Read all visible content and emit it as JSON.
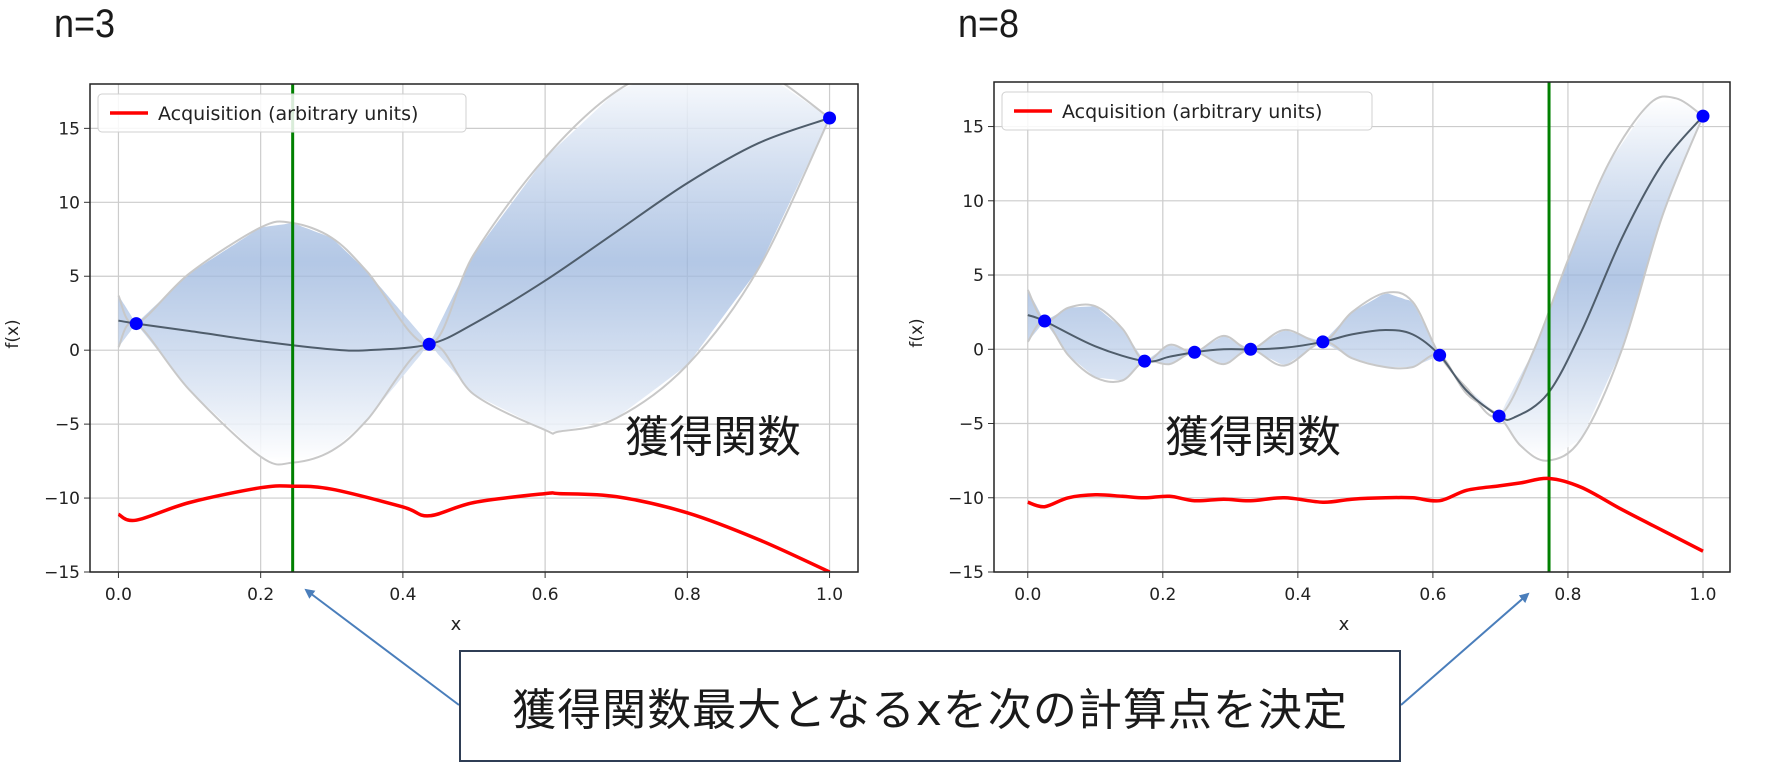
{
  "panels": [
    {
      "title": "n=3"
    },
    {
      "title": "n=8"
    }
  ],
  "annotation": {
    "chart_label": "獲得関数",
    "callout": "獲得関数最大となるxを次の計算点を決定"
  },
  "colors": {
    "mean": "#4f5d6b",
    "band_edge": "#c8c8c8",
    "band_fill": "#9ab5dd",
    "observation": "#0000ff",
    "acquisition": "#ff0000",
    "next_point": "#008000",
    "grid": "#cccccc",
    "arrow": "#4a7ebb"
  },
  "chart_data": [
    {
      "type": "line",
      "title": "n=3",
      "xlabel": "x",
      "ylabel": "f(x)",
      "xlim": [
        -0.04,
        1.04
      ],
      "ylim": [
        -15,
        18
      ],
      "xticks": [
        "0.0",
        "0.2",
        "0.4",
        "0.6",
        "0.8",
        "1.0"
      ],
      "yticks": [
        "15",
        "10",
        "5",
        "0",
        "−5",
        "−10",
        "−15"
      ],
      "grid": true,
      "legend": {
        "position": "top-left",
        "entries": [
          "Acquisition (arbitrary units)"
        ]
      },
      "next_point_x": 0.245,
      "observations": {
        "x": [
          0.025,
          0.437,
          1.0
        ],
        "y": [
          1.8,
          0.4,
          15.7
        ]
      },
      "series": [
        {
          "x": [
            0.0,
            0.025,
            0.1,
            0.2,
            0.3,
            0.35,
            0.437,
            0.5,
            0.6,
            0.7,
            0.8,
            0.9,
            1.0
          ],
          "y": [
            2.0,
            1.8,
            1.3,
            0.6,
            0.05,
            0.0,
            0.4,
            1.8,
            4.7,
            8.0,
            11.3,
            14.0,
            15.7
          ]
        },
        {
          "x": [
            0.0,
            0.025,
            0.1,
            0.2,
            0.245,
            0.3,
            0.35,
            0.437,
            0.5,
            0.6,
            0.7,
            0.8,
            0.9,
            1.0
          ],
          "y": [
            3.7,
            1.8,
            5.2,
            8.3,
            8.6,
            7.6,
            5.3,
            0.4,
            6.5,
            13.0,
            17.5,
            19.5,
            19.0,
            15.7
          ]
        },
        {
          "x": [
            0.0,
            0.025,
            0.1,
            0.2,
            0.245,
            0.3,
            0.35,
            0.437,
            0.5,
            0.6,
            0.62,
            0.7,
            0.8,
            0.9,
            1.0
          ],
          "y": [
            0.2,
            1.8,
            -2.7,
            -7.2,
            -7.6,
            -6.8,
            -4.7,
            0.4,
            -3.0,
            -5.4,
            -5.5,
            -4.6,
            -1.0,
            5.5,
            15.7
          ]
        },
        {
          "name": "Acquisition (arbitrary units)",
          "x": [
            0.0,
            0.025,
            0.1,
            0.2,
            0.245,
            0.3,
            0.4,
            0.437,
            0.5,
            0.6,
            0.62,
            0.7,
            0.8,
            0.9,
            1.0
          ],
          "y": [
            -11.1,
            -11.5,
            -10.3,
            -9.3,
            -9.2,
            -9.4,
            -10.6,
            -11.2,
            -10.3,
            -9.7,
            -9.7,
            -9.9,
            -11.0,
            -12.8,
            -15.0
          ]
        }
      ]
    },
    {
      "type": "line",
      "title": "n=8",
      "xlabel": "x",
      "ylabel": "f(x)",
      "xlim": [
        -0.05,
        1.04
      ],
      "ylim": [
        -15,
        18
      ],
      "xticks": [
        "0.0",
        "0.2",
        "0.4",
        "0.6",
        "0.8",
        "1.0"
      ],
      "yticks": [
        "15",
        "10",
        "5",
        "0",
        "−5",
        "−10",
        "−15"
      ],
      "grid": true,
      "legend": {
        "position": "top-left",
        "entries": [
          "Acquisition (arbitrary units)"
        ]
      },
      "next_point_x": 0.772,
      "observations": {
        "x": [
          0.025,
          0.173,
          0.247,
          0.33,
          0.437,
          0.61,
          0.698,
          1.0
        ],
        "y": [
          1.9,
          -0.8,
          -0.2,
          0.0,
          0.5,
          -0.4,
          -4.5,
          15.7
        ]
      },
      "series": [
        {
          "x": [
            0.0,
            0.025,
            0.1,
            0.173,
            0.21,
            0.247,
            0.29,
            0.33,
            0.38,
            0.437,
            0.48,
            0.53,
            0.57,
            0.61,
            0.65,
            0.698,
            0.72,
            0.77,
            0.82,
            0.88,
            0.94,
            1.0
          ],
          "y": [
            2.3,
            1.9,
            0.2,
            -0.8,
            -0.5,
            -0.2,
            0.0,
            0.0,
            0.1,
            0.5,
            1.0,
            1.3,
            1.0,
            -0.4,
            -2.8,
            -4.5,
            -4.6,
            -3.0,
            1.2,
            7.5,
            12.5,
            15.7
          ]
        },
        {
          "x": [
            0.0,
            0.025,
            0.06,
            0.1,
            0.14,
            0.173,
            0.21,
            0.247,
            0.29,
            0.33,
            0.38,
            0.437,
            0.48,
            0.53,
            0.57,
            0.61,
            0.65,
            0.698,
            0.75,
            0.8,
            0.86,
            0.92,
            0.96,
            1.0
          ],
          "y": [
            4.0,
            1.9,
            2.8,
            2.9,
            1.4,
            -0.8,
            0.3,
            -0.2,
            0.9,
            0.0,
            1.3,
            0.5,
            2.5,
            3.8,
            3.2,
            -0.4,
            -2.6,
            -4.5,
            0.0,
            6.0,
            12.5,
            16.5,
            16.9,
            15.7
          ]
        },
        {
          "x": [
            0.0,
            0.025,
            0.06,
            0.1,
            0.14,
            0.173,
            0.21,
            0.247,
            0.29,
            0.33,
            0.38,
            0.437,
            0.48,
            0.53,
            0.57,
            0.61,
            0.65,
            0.698,
            0.73,
            0.77,
            0.82,
            0.88,
            0.94,
            1.0
          ],
          "y": [
            0.5,
            1.9,
            -0.4,
            -1.9,
            -2.1,
            -0.8,
            -1.0,
            -0.2,
            -1.0,
            0.0,
            -1.1,
            0.5,
            -0.6,
            -1.2,
            -1.2,
            -0.4,
            -3.0,
            -4.5,
            -6.5,
            -7.5,
            -6.0,
            0.0,
            9.0,
            15.7
          ]
        },
        {
          "name": "Acquisition (arbitrary units)",
          "x": [
            0.0,
            0.025,
            0.06,
            0.1,
            0.14,
            0.173,
            0.21,
            0.247,
            0.29,
            0.33,
            0.38,
            0.437,
            0.48,
            0.53,
            0.57,
            0.61,
            0.65,
            0.698,
            0.73,
            0.772,
            0.82,
            0.88,
            0.94,
            1.0
          ],
          "y": [
            -10.3,
            -10.6,
            -10.0,
            -9.8,
            -9.9,
            -10.0,
            -9.9,
            -10.2,
            -10.1,
            -10.2,
            -10.0,
            -10.3,
            -10.1,
            -10.0,
            -10.0,
            -10.2,
            -9.5,
            -9.2,
            -9.0,
            -8.7,
            -9.3,
            -10.8,
            -12.2,
            -13.6
          ]
        }
      ]
    }
  ]
}
